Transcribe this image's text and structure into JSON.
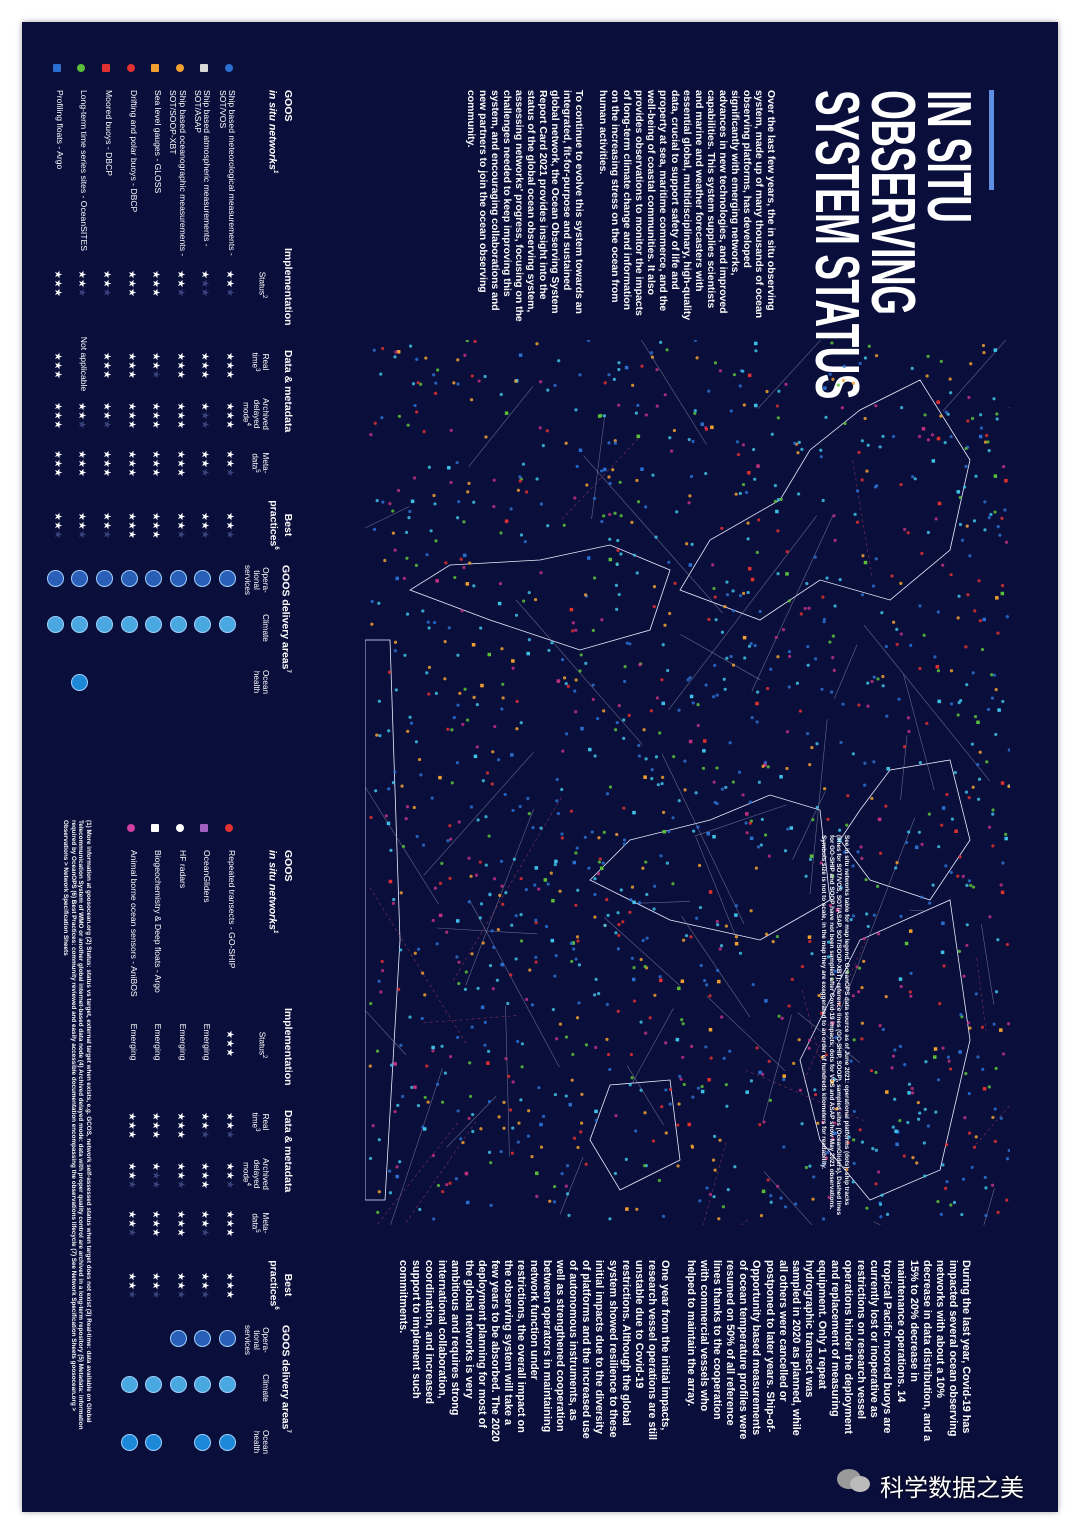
{
  "header": {
    "title_lines": [
      "IN SITU",
      "OBSERVING",
      "SYSTEM STATUS"
    ]
  },
  "intro": [
    "Over the last few years, the in situ observing system, made up of many thousands of ocean observing platforms, has developed significantly with emerging networks, advances in new technologies, and improved capabilities. This system supplies scientists and marine and weather forecasters with essential global, multidisciplinary, high-quality data, crucial to support safety of life and property at sea, maritime commerce, and the well-being of coastal communities. It also provides observations to monitor the impacts of long-term climate change and information on the increasing stress on the ocean from human activities.",
    "To continue to evolve this system towards an integrated, fit-for-purpose and sustained global network, the Ocean Observing System Report Card 2021 provides insight into the status of the global ocean observing system, assessing networks' progress, focusing on the challenges needed to keep improving this system, and encouraging collaborations and new partners to join the ocean observing community."
  ],
  "covid": [
    "During the last year, Covid-19 has impacted several ocean observing networks with about a 10% decrease in data distribution, and a 15% to 20% decrease in maintenance operations. 14 tropical Pacific moored buoys are currently lost or inoperative as restrictions on research vessel operations hinder the deployment and replacement of measuring equipment. Only 1 repeat hydrographic transect was sampled in 2020 as planned, while all others were cancelled or postponed to later years. Ship-of-Opportunity based measurements of ocean temperature profiles were resumed on 50% of all reference lines thanks to the cooperation with commercial vessels who helped to maintain the array.",
    "One year from the initial impacts, research vessel operations are still unstable due to Covid-19 restrictions. Although the global system showed resilience to these initial impacts due to the diversity of platforms and the increased use of autonomous instruments, as well as strengthened cooperation between operators in maintaining network function under restrictions, the overall impact on the observing system will take a few years to be absorbed. The 2020 deployment planning for most of the global networks is very ambitious and requires strong international collaboration, coordination, and increased support to implement such commitments."
  ],
  "map_note": "See in situ networks table for map legend. OceanOPS data source as of June 2021: operational platforms (dots), ship tracks (lines for SOT/VOS, SOT/ASAP, SOT/SOOP-XBT), reference lines (GO-SHIP, SOOP), sampled sites (OceanGliders). Dashed lines for GO-SHIP and SOOP have not been sampled after Covid-19 impacts; dots for VOS and ASAP show May 2021 observations. Symbols size is not to scale, in the map they are exaggerated to an order of hundreds kilometers for readability.",
  "table_header": {
    "goos": "GOOS",
    "networks": "in situ networks",
    "networks_note": "1",
    "implementation": "Implementation",
    "status": "Status",
    "status_note": "2",
    "data": "Data & metadata",
    "real_time": "Real time",
    "real_time_note": "3",
    "archived": "Archived delayed mode",
    "archived_note": "4",
    "metadata": "Meta-data",
    "metadata_note": "5",
    "best": "Best practices",
    "best_note": "6",
    "delivery": "GOOS delivery areas",
    "delivery_note": "7",
    "operational": "Opera-tional services",
    "climate": "Climate",
    "ocean_health": "Ocean health"
  },
  "tables": [
    {
      "rows": [
        {
          "color": "#2a6fd0",
          "network": "Ship based meteorological measurements - SOT/VOS",
          "status": 2,
          "real_time": 3,
          "archived": 3,
          "metadata": 2,
          "best": 2,
          "operational": true,
          "climate": true,
          "ocean_health": false
        },
        {
          "color": "#d8d8d8",
          "network": "Ship based atmospheric measurements - SOT/ASAP",
          "status": 1,
          "real_time": 3,
          "archived": 1,
          "metadata": 2,
          "best": 2,
          "operational": true,
          "climate": true,
          "ocean_health": false
        },
        {
          "color": "#f0a030",
          "network": "Ship based oceanographic measurements - SOT/SOOP-XBT",
          "status": 2,
          "real_time": 3,
          "archived": 3,
          "metadata": 3,
          "best": 2,
          "operational": true,
          "climate": true,
          "ocean_health": false
        },
        {
          "color": "#f0a030",
          "network": "Sea level gauges - GLOSS",
          "status": 3,
          "real_time": 2,
          "archived": 3,
          "metadata": 3,
          "best": 3,
          "operational": true,
          "climate": true,
          "ocean_health": false
        },
        {
          "color": "#e03030",
          "network": "Drifting and polar buoys - DBCP",
          "status": 3,
          "real_time": 3,
          "archived": 3,
          "metadata": 3,
          "best": 3,
          "operational": true,
          "climate": true,
          "ocean_health": false
        },
        {
          "color": "#e03030",
          "network": "Moored buoys - DBCP",
          "status": 2,
          "real_time": 3,
          "archived": 2,
          "metadata": 3,
          "best": 2,
          "operational": true,
          "climate": true,
          "ocean_health": false
        },
        {
          "color": "#5bbf3a",
          "network": "Long-term time series sites - OceanSITES",
          "status": 2,
          "real_time": "Not applicable",
          "archived": 2,
          "metadata": 3,
          "best": 2,
          "operational": true,
          "climate": true,
          "ocean_health": true
        },
        {
          "color": "#2a6fd0",
          "network": "Profiling floats - Argo",
          "status": 3,
          "real_time": 3,
          "archived": 3,
          "metadata": 3,
          "best": 2,
          "operational": true,
          "climate": true,
          "ocean_health": false
        }
      ]
    },
    {
      "rows": [
        {
          "color": "#e03030",
          "network": "Repeated transects - GO-SHIP",
          "status": 3,
          "real_time": 2,
          "archived": 2,
          "metadata": 3,
          "best": 3,
          "operational": true,
          "climate": true,
          "ocean_health": true
        },
        {
          "color": "#a060c0",
          "network": "OceanGliders",
          "status": "Emerging",
          "real_time": 2,
          "archived": 3,
          "metadata": 2,
          "best": 2,
          "operational": true,
          "climate": true,
          "ocean_health": true
        },
        {
          "color": "#ffffff",
          "network": "HF radars",
          "status": "Emerging",
          "real_time": 3,
          "archived": 2,
          "metadata": 3,
          "best": 2,
          "operational": true,
          "climate": true,
          "ocean_health": false
        },
        {
          "color": "#ffffff",
          "network": "Biogeochemistry & Deep floats - Argo",
          "status": "Emerging",
          "real_time": 3,
          "archived": 1,
          "metadata": 3,
          "best": 2,
          "operational": false,
          "climate": true,
          "ocean_health": true
        },
        {
          "color": "#d040a0",
          "network": "Animal borne ocean sensors - AniBOS",
          "status": "Emerging",
          "real_time": 3,
          "archived": 2,
          "metadata": 2,
          "best": 2,
          "operational": false,
          "climate": true,
          "ocean_health": true
        }
      ]
    }
  ],
  "footnotes": "(1) More information at goosocean.org (2) Status: status vs target, external target when exists, e.g. GCOS, network self-assessed status when target does not exist (3) Real-time: data available on Global Telecommunication System of WMO or another global internet-based data node (4) Archived delayed mode: data with proper quality control are archived in a long-term repository (5) Metadata: information required by OceanOPS (6) Best Practices: community reviewed and easily accessible documentation encompassing the observations lifecycle (7) See Network Specification Sheets goosocean.org > Observations > Network Specification Sheets",
  "watermark": "科学数据之美"
}
